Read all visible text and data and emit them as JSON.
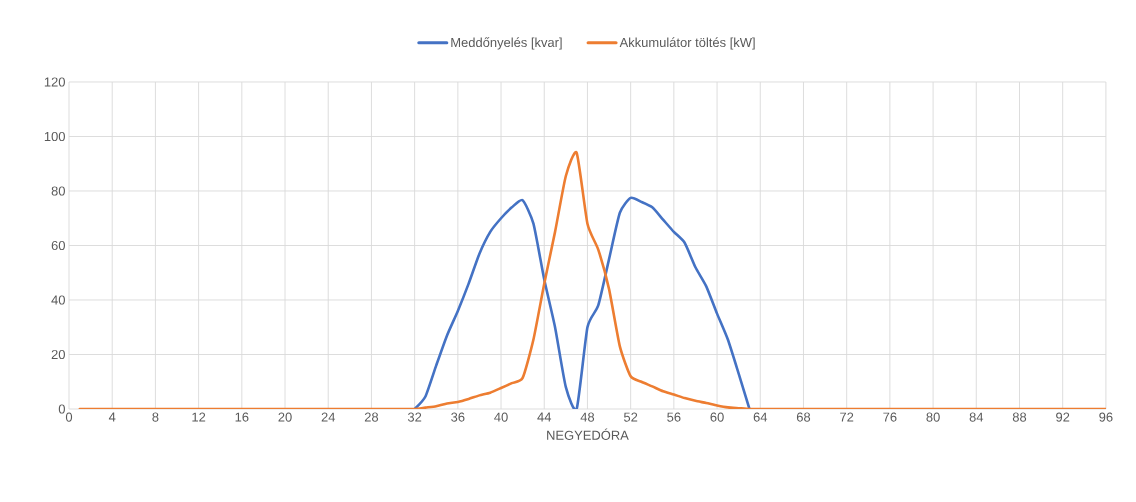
{
  "chart_data": {
    "type": "line",
    "xlabel": "NEGYEDÓRA",
    "x": [
      1,
      2,
      3,
      4,
      5,
      6,
      7,
      8,
      9,
      10,
      11,
      12,
      13,
      14,
      15,
      16,
      17,
      18,
      19,
      20,
      21,
      22,
      23,
      24,
      25,
      26,
      27,
      28,
      29,
      30,
      31,
      32,
      33,
      34,
      35,
      36,
      37,
      38,
      39,
      40,
      41,
      42,
      43,
      44,
      45,
      46,
      47,
      48,
      49,
      50,
      51,
      52,
      53,
      54,
      55,
      56,
      57,
      58,
      59,
      60,
      61,
      62,
      63,
      64,
      65,
      66,
      67,
      68,
      69,
      70,
      71,
      72,
      73,
      74,
      75,
      76,
      77,
      78,
      79,
      80,
      81,
      82,
      83,
      84,
      85,
      86,
      87,
      88,
      89,
      90,
      91,
      92,
      93,
      94,
      95,
      96
    ],
    "series": [
      {
        "name": "Meddőnyelés [kvar]",
        "color": "#4472c4",
        "values": [
          null,
          null,
          null,
          null,
          null,
          null,
          null,
          null,
          null,
          null,
          null,
          null,
          null,
          null,
          null,
          null,
          null,
          null,
          null,
          null,
          null,
          null,
          null,
          null,
          null,
          null,
          null,
          null,
          null,
          null,
          null,
          0,
          4.6,
          16,
          27,
          36,
          46,
          57,
          65,
          70,
          74,
          76.6,
          68,
          47.5,
          30,
          8,
          0,
          30,
          38,
          55,
          72,
          77.5,
          76,
          74,
          69.5,
          65,
          61,
          52,
          45,
          35,
          25.5,
          13,
          0,
          null,
          null,
          null,
          null,
          null,
          null,
          null,
          null,
          null,
          null,
          null,
          null,
          null,
          null,
          null,
          null,
          null,
          null,
          null,
          null,
          null,
          null,
          null,
          null,
          null,
          null,
          null,
          null,
          null,
          null,
          null,
          null,
          null
        ]
      },
      {
        "name": "Akkumulátor töltés [kW]",
        "color": "#ed7d31",
        "values": [
          0,
          0,
          0,
          0,
          0,
          0,
          0,
          0,
          0,
          0,
          0,
          0,
          0,
          0,
          0,
          0,
          0,
          0,
          0,
          0,
          0,
          0,
          0,
          0,
          0,
          0,
          0,
          0,
          0,
          0,
          0,
          0,
          0.5,
          1,
          2,
          2.6,
          3.7,
          5,
          6,
          7.7,
          9.5,
          11.4,
          25.5,
          46,
          65,
          85.5,
          94,
          68,
          58.5,
          44,
          23,
          12,
          10,
          8.3,
          6.5,
          5.3,
          4,
          3,
          2.2,
          1.3,
          0.6,
          0.3,
          0,
          0,
          0,
          0,
          0,
          0,
          0,
          0,
          0,
          0,
          0,
          0,
          0,
          0,
          0,
          0,
          0,
          0,
          0,
          0,
          0,
          0,
          0,
          0,
          0,
          0,
          0,
          0,
          0,
          0,
          0,
          0,
          0,
          0
        ]
      }
    ],
    "xlim": [
      0,
      96
    ],
    "xticks": [
      0,
      4,
      8,
      12,
      16,
      20,
      24,
      28,
      32,
      36,
      40,
      44,
      48,
      52,
      56,
      60,
      64,
      68,
      72,
      76,
      80,
      84,
      88,
      92,
      96
    ],
    "ylim": [
      0,
      120
    ],
    "yticks": [
      0,
      20,
      40,
      60,
      80,
      100,
      120
    ],
    "grid": true,
    "legend": "top",
    "marker": "none",
    "line_style": "solid"
  }
}
